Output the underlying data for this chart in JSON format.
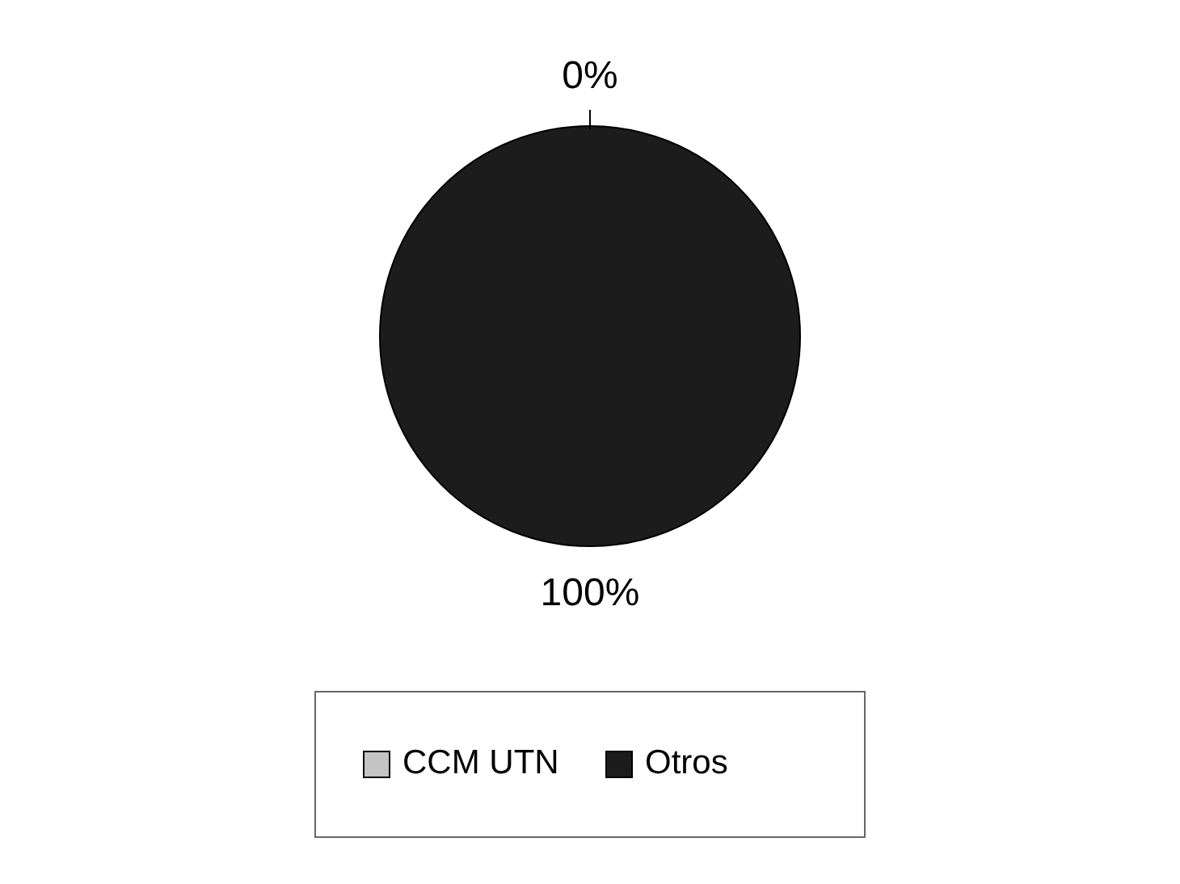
{
  "chart_data": {
    "type": "pie",
    "categories": [
      "CCM UTN",
      "Otros"
    ],
    "values": [
      0,
      100
    ],
    "colors": [
      "#c4c4c4",
      "#1c1c1c"
    ],
    "value_labels": [
      "0%",
      "100%"
    ],
    "legend": "bottom"
  }
}
